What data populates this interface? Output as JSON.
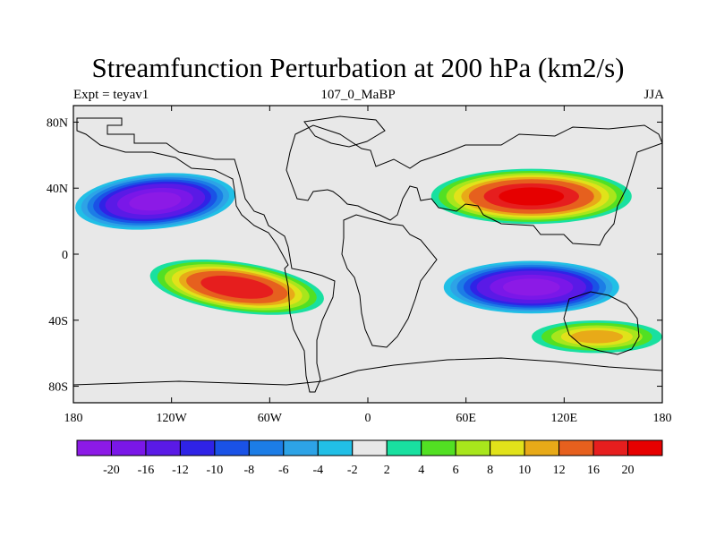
{
  "chart_data": {
    "type": "heatmap",
    "title": "Streamfunction Perturbation at 200 hPa (km2/s)",
    "subtitle_left": "Expt = teyav1",
    "subtitle_center": "107_0_MaBP",
    "subtitle_right": "JJA",
    "x_axis": {
      "range": [
        -180,
        180
      ],
      "ticks": [
        -180,
        -120,
        -60,
        0,
        60,
        120,
        180
      ],
      "tick_labels": [
        "180",
        "120W",
        "60W",
        "0",
        "60E",
        "120E",
        "180"
      ]
    },
    "y_axis": {
      "range": [
        -90,
        90
      ],
      "ticks": [
        80,
        40,
        0,
        -40,
        -80
      ],
      "tick_labels": [
        "80N",
        "40N",
        "0",
        "40S",
        "80S"
      ]
    },
    "levels": [
      -20,
      -16,
      -12,
      -10,
      -8,
      -6,
      -4,
      -2,
      2,
      4,
      6,
      8,
      10,
      12,
      16,
      20
    ],
    "level_labels": [
      "-20",
      "-16",
      "-12",
      "-10",
      "-8",
      "-6",
      "-4",
      "-2",
      "2",
      "4",
      "6",
      "8",
      "10",
      "12",
      "16",
      "20"
    ],
    "colors": [
      "#8c1ae6",
      "#7a17e8",
      "#5a1ae6",
      "#2f23e6",
      "#1a52e6",
      "#1c7de6",
      "#2da3e6",
      "#21bfe6",
      "#e8e8e8",
      "#19e0a0",
      "#52e023",
      "#a8e61c",
      "#e1e21a",
      "#e8aa18",
      "#e6601e",
      "#e61e1e",
      "#e60000"
    ],
    "features": [
      {
        "name": "North Pacific low",
        "lon": -130,
        "lat": 32,
        "peak": -20
      },
      {
        "name": "Tropical South Pacific high",
        "lon": -80,
        "lat": -20,
        "peak": 18
      },
      {
        "name": "Asian high",
        "lon": 100,
        "lat": 35,
        "peak": 20
      },
      {
        "name": "Indian Ocean low",
        "lon": 100,
        "lat": -20,
        "peak": -20
      },
      {
        "name": "South Pacific secondary high",
        "lon": 140,
        "lat": -50,
        "peak": 10
      }
    ]
  }
}
